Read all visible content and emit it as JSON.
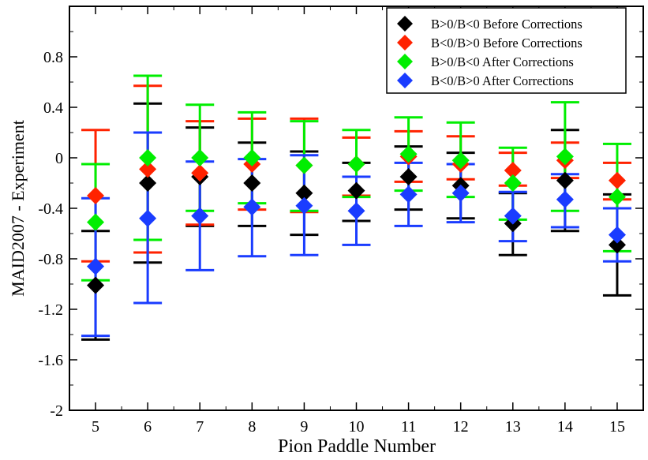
{
  "chart_data": {
    "type": "scatter",
    "title": "",
    "xlabel": "Pion Paddle Number",
    "ylabel": "MAID2007 - Experiment",
    "xlim": [
      4.5,
      15.5
    ],
    "ylim": [
      -2,
      1.2
    ],
    "x_ticks": [
      "5",
      "6",
      "7",
      "8",
      "9",
      "10",
      "11",
      "12",
      "13",
      "14",
      "15"
    ],
    "y_ticks": [
      "-2",
      "-1.6",
      "-1.2",
      "-0.8",
      "-0.4",
      "0",
      "0.4",
      "0.8"
    ],
    "y_tick_values": [
      -2,
      -1.6,
      -1.2,
      -0.8,
      -0.4,
      0,
      0.4,
      0.8
    ],
    "grid": false,
    "legend_position": "top-right",
    "series": [
      {
        "name": "B>0/B<0 Before Corrections",
        "color": "#000000",
        "marker": "diamond",
        "points": [
          {
            "x": 5,
            "y": -1.01,
            "lo": -1.44,
            "hi": -0.58
          },
          {
            "x": 6,
            "y": -0.2,
            "lo": -0.83,
            "hi": 0.43
          },
          {
            "x": 7,
            "y": -0.15,
            "lo": -0.54,
            "hi": 0.24
          },
          {
            "x": 8,
            "y": -0.2,
            "lo": -0.54,
            "hi": 0.12
          },
          {
            "x": 9,
            "y": -0.28,
            "lo": -0.61,
            "hi": 0.05
          },
          {
            "x": 10,
            "y": -0.26,
            "lo": -0.5,
            "hi": -0.04
          },
          {
            "x": 11,
            "y": -0.15,
            "lo": -0.41,
            "hi": 0.09
          },
          {
            "x": 12,
            "y": -0.22,
            "lo": -0.48,
            "hi": 0.04
          },
          {
            "x": 13,
            "y": -0.52,
            "lo": -0.77,
            "hi": -0.28
          },
          {
            "x": 14,
            "y": -0.18,
            "lo": -0.58,
            "hi": 0.22
          },
          {
            "x": 15,
            "y": -0.69,
            "lo": -1.09,
            "hi": -0.29
          }
        ]
      },
      {
        "name": "B<0/B>0 Before Corrections",
        "color": "#ff2200",
        "marker": "diamond",
        "points": [
          {
            "x": 5,
            "y": -0.3,
            "lo": -0.82,
            "hi": 0.22
          },
          {
            "x": 6,
            "y": -0.09,
            "lo": -0.75,
            "hi": 0.57
          },
          {
            "x": 7,
            "y": -0.12,
            "lo": -0.53,
            "hi": 0.29
          },
          {
            "x": 8,
            "y": -0.05,
            "lo": -0.41,
            "hi": 0.31
          },
          {
            "x": 9,
            "y": -0.06,
            "lo": -0.43,
            "hi": 0.31
          },
          {
            "x": 10,
            "y": -0.05,
            "lo": -0.3,
            "hi": 0.16
          },
          {
            "x": 11,
            "y": 0.01,
            "lo": -0.19,
            "hi": 0.21
          },
          {
            "x": 12,
            "y": -0.05,
            "lo": -0.17,
            "hi": 0.17
          },
          {
            "x": 13,
            "y": -0.1,
            "lo": -0.22,
            "hi": 0.04
          },
          {
            "x": 14,
            "y": -0.02,
            "lo": -0.16,
            "hi": 0.12
          },
          {
            "x": 15,
            "y": -0.18,
            "lo": -0.33,
            "hi": -0.04
          }
        ]
      },
      {
        "name": "B>0/B<0 After Corrections",
        "color": "#00ee00",
        "marker": "diamond",
        "points": [
          {
            "x": 5,
            "y": -0.51,
            "lo": -0.97,
            "hi": -0.05
          },
          {
            "x": 6,
            "y": 0.0,
            "lo": -0.65,
            "hi": 0.65
          },
          {
            "x": 7,
            "y": 0.0,
            "lo": -0.42,
            "hi": 0.42
          },
          {
            "x": 8,
            "y": 0.0,
            "lo": -0.36,
            "hi": 0.36
          },
          {
            "x": 9,
            "y": -0.06,
            "lo": -0.42,
            "hi": 0.29
          },
          {
            "x": 10,
            "y": -0.05,
            "lo": -0.31,
            "hi": 0.22
          },
          {
            "x": 11,
            "y": 0.03,
            "lo": -0.26,
            "hi": 0.32
          },
          {
            "x": 12,
            "y": -0.02,
            "lo": -0.31,
            "hi": 0.28
          },
          {
            "x": 13,
            "y": -0.2,
            "lo": -0.49,
            "hi": 0.08
          },
          {
            "x": 14,
            "y": 0.01,
            "lo": -0.42,
            "hi": 0.44
          },
          {
            "x": 15,
            "y": -0.31,
            "lo": -0.74,
            "hi": 0.11
          }
        ]
      },
      {
        "name": "B<0/B>0 After Corrections",
        "color": "#1a3cff",
        "marker": "diamond",
        "points": [
          {
            "x": 5,
            "y": -0.86,
            "lo": -1.41,
            "hi": -0.32
          },
          {
            "x": 6,
            "y": -0.48,
            "lo": -1.15,
            "hi": 0.2
          },
          {
            "x": 7,
            "y": -0.46,
            "lo": -0.89,
            "hi": -0.03
          },
          {
            "x": 8,
            "y": -0.39,
            "lo": -0.78,
            "hi": -0.01
          },
          {
            "x": 9,
            "y": -0.38,
            "lo": -0.77,
            "hi": 0.02
          },
          {
            "x": 10,
            "y": -0.42,
            "lo": -0.69,
            "hi": -0.15
          },
          {
            "x": 11,
            "y": -0.29,
            "lo": -0.54,
            "hi": -0.04
          },
          {
            "x": 12,
            "y": -0.28,
            "lo": -0.51,
            "hi": -0.05
          },
          {
            "x": 13,
            "y": -0.46,
            "lo": -0.66,
            "hi": -0.27
          },
          {
            "x": 14,
            "y": -0.33,
            "lo": -0.55,
            "hi": -0.13
          },
          {
            "x": 15,
            "y": -0.61,
            "lo": -0.82,
            "hi": -0.4
          }
        ]
      }
    ]
  }
}
